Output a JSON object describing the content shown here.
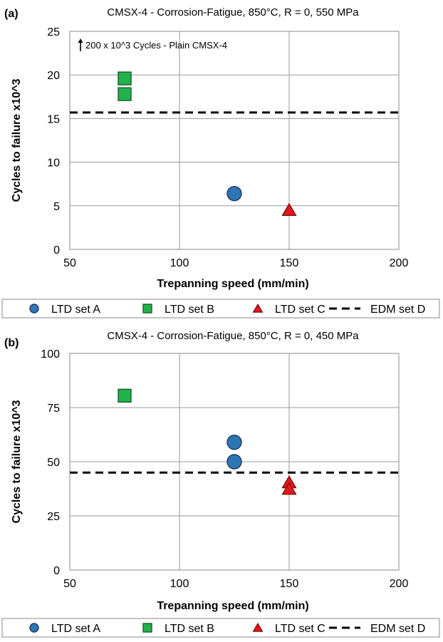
{
  "chart_data": [
    {
      "panel_label": "(a)",
      "type": "scatter",
      "title": "CMSX-4 - Corrosion-Fatigue, 850°C, R = 0, 550 MPa",
      "xlabel": "Trepanning speed (mm/min)",
      "ylabel": "Cycles to failure x10^3",
      "xlim": [
        50,
        200
      ],
      "ylim": [
        0,
        25
      ],
      "xticks": [
        50,
        100,
        150,
        200
      ],
      "yticks": [
        0,
        5,
        10,
        15,
        20,
        25
      ],
      "grid": true,
      "annotation": "200 x 10^3 Cycles - Plain CMSX-4",
      "series": [
        {
          "name": "LTD set A",
          "marker": "circle",
          "color": "#2E75B6",
          "points": [
            [
              125,
              6.4
            ]
          ]
        },
        {
          "name": "LTD set B",
          "marker": "square",
          "color": "#22B24C",
          "points": [
            [
              75,
              19.6
            ],
            [
              75,
              17.8
            ]
          ]
        },
        {
          "name": "LTD set C",
          "marker": "triangle",
          "color": "#E8161B",
          "points": [
            [
              150,
              4.4
            ]
          ]
        },
        {
          "name": "EDM set D",
          "marker": "dashed-line",
          "color": "#000000",
          "value": 15.7
        }
      ]
    },
    {
      "panel_label": "(b)",
      "type": "scatter",
      "title": "CMSX-4 - Corrosion-Fatigue, 850°C, R = 0, 450 MPa",
      "xlabel": "Trepanning speed (mm/min)",
      "ylabel": "Cycles to failure x10^3",
      "xlim": [
        50,
        200
      ],
      "ylim": [
        0,
        100
      ],
      "xticks": [
        50,
        100,
        150,
        200
      ],
      "yticks": [
        0,
        25,
        50,
        75,
        100
      ],
      "grid": true,
      "series": [
        {
          "name": "LTD set A",
          "marker": "circle",
          "color": "#2E75B6",
          "points": [
            [
              125,
              59
            ],
            [
              125,
              50
            ]
          ]
        },
        {
          "name": "LTD set B",
          "marker": "square",
          "color": "#22B24C",
          "points": [
            [
              75,
              80.5
            ]
          ]
        },
        {
          "name": "LTD set C",
          "marker": "triangle",
          "color": "#E8161B",
          "points": [
            [
              150,
              40
            ],
            [
              150,
              37
            ]
          ]
        },
        {
          "name": "EDM set D",
          "marker": "dashed-line",
          "color": "#000000",
          "value": 45
        }
      ]
    }
  ]
}
